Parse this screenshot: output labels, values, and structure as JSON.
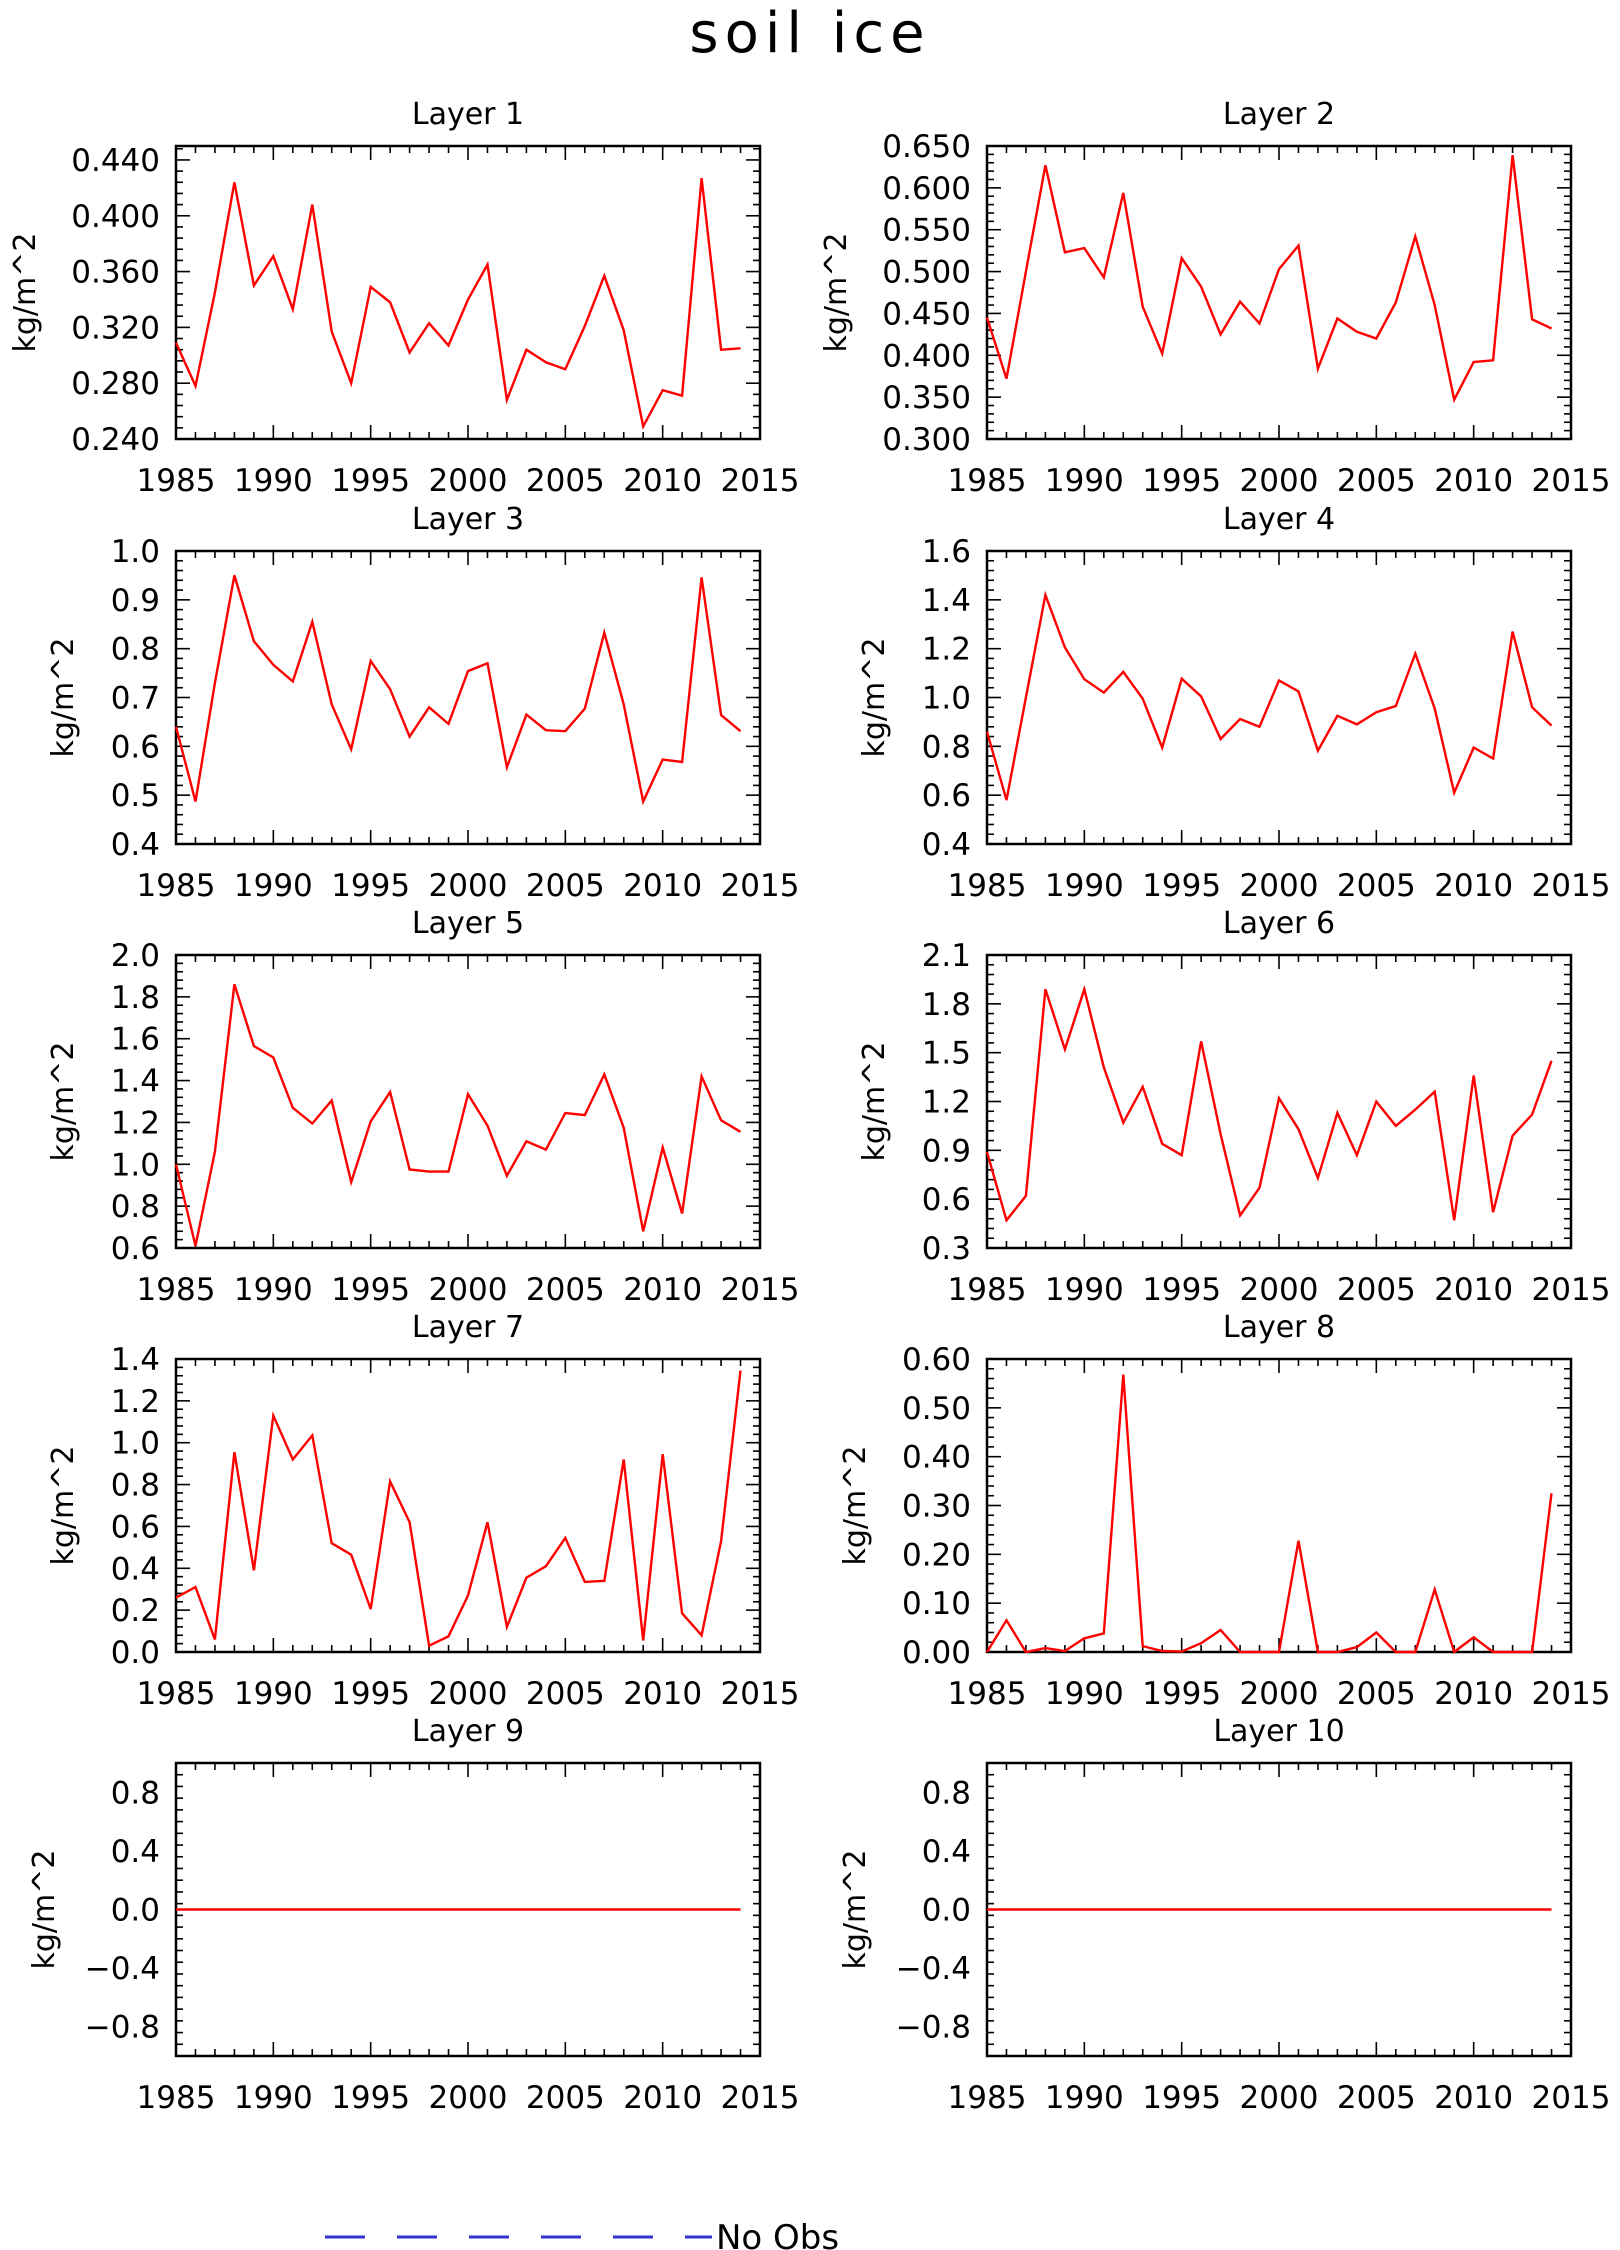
{
  "title": "soil ice",
  "legend": {
    "label": "No Obs",
    "color": "#3333cc"
  },
  "series_color": "#ff0000",
  "chart_data": [
    {
      "type": "line",
      "title": "Layer 1",
      "ylabel": "kg/m^2",
      "xlim": [
        1985,
        2015
      ],
      "ylim": [
        0.24,
        0.45
      ],
      "xticks": [
        "1985",
        "1990",
        "1995",
        "2000",
        "2005",
        "2010",
        "2015"
      ],
      "yticks": [
        "0.240",
        "0.280",
        "0.320",
        "0.360",
        "0.400",
        "0.440"
      ],
      "x_start": 1985,
      "values": [
        0.309,
        0.278,
        0.345,
        0.424,
        0.35,
        0.371,
        0.333,
        0.408,
        0.317,
        0.28,
        0.349,
        0.338,
        0.302,
        0.323,
        0.307,
        0.34,
        0.365,
        0.268,
        0.304,
        0.295,
        0.29,
        0.321,
        0.357,
        0.318,
        0.249,
        0.275,
        0.271,
        0.427,
        0.304,
        0.305
      ]
    },
    {
      "type": "line",
      "title": "Layer 2",
      "ylabel": "kg/m^2",
      "xlim": [
        1985,
        2015
      ],
      "ylim": [
        0.3,
        0.65
      ],
      "xticks": [
        "1985",
        "1990",
        "1995",
        "2000",
        "2005",
        "2010",
        "2015"
      ],
      "yticks": [
        "0.300",
        "0.350",
        "0.400",
        "0.450",
        "0.500",
        "0.550",
        "0.600",
        "0.650"
      ],
      "x_start": 1985,
      "values": [
        0.445,
        0.372,
        0.5,
        0.627,
        0.523,
        0.528,
        0.493,
        0.594,
        0.458,
        0.402,
        0.516,
        0.482,
        0.425,
        0.464,
        0.438,
        0.503,
        0.531,
        0.384,
        0.444,
        0.428,
        0.42,
        0.463,
        0.542,
        0.46,
        0.347,
        0.392,
        0.394,
        0.639,
        0.443,
        0.432
      ]
    },
    {
      "type": "line",
      "title": "Layer 3",
      "ylabel": "kg/m^2",
      "xlim": [
        1985,
        2015
      ],
      "ylim": [
        0.4,
        1.0
      ],
      "xticks": [
        "1985",
        "1990",
        "1995",
        "2000",
        "2005",
        "2010",
        "2015"
      ],
      "yticks": [
        "0.4",
        "0.5",
        "0.6",
        "0.7",
        "0.8",
        "0.9",
        "1.0"
      ],
      "x_start": 1985,
      "values": [
        0.64,
        0.487,
        0.73,
        0.95,
        0.815,
        0.767,
        0.733,
        0.855,
        0.686,
        0.594,
        0.775,
        0.717,
        0.62,
        0.68,
        0.646,
        0.754,
        0.77,
        0.557,
        0.665,
        0.633,
        0.631,
        0.677,
        0.833,
        0.686,
        0.487,
        0.573,
        0.568,
        0.946,
        0.664,
        0.631
      ]
    },
    {
      "type": "line",
      "title": "Layer 4",
      "ylabel": "kg/m^2",
      "xlim": [
        1985,
        2015
      ],
      "ylim": [
        0.4,
        1.6
      ],
      "xticks": [
        "1985",
        "1990",
        "1995",
        "2000",
        "2005",
        "2010",
        "2015"
      ],
      "yticks": [
        "0.4",
        "0.6",
        "0.8",
        "1.0",
        "1.2",
        "1.4",
        "1.6"
      ],
      "x_start": 1985,
      "values": [
        0.86,
        0.58,
        1.0,
        1.42,
        1.205,
        1.075,
        1.02,
        1.105,
        0.995,
        0.795,
        1.077,
        1.005,
        0.83,
        0.912,
        0.88,
        1.07,
        1.025,
        0.782,
        0.925,
        0.89,
        0.94,
        0.965,
        1.18,
        0.955,
        0.61,
        0.795,
        0.75,
        1.27,
        0.96,
        0.885
      ]
    },
    {
      "type": "line",
      "title": "Layer 5",
      "ylabel": "kg/m^2",
      "xlim": [
        1985,
        2015
      ],
      "ylim": [
        0.6,
        2.0
      ],
      "xticks": [
        "1985",
        "1990",
        "1995",
        "2000",
        "2005",
        "2010",
        "2015"
      ],
      "yticks": [
        "0.6",
        "0.8",
        "1.0",
        "1.2",
        "1.4",
        "1.6",
        "1.8",
        "2.0"
      ],
      "x_start": 1985,
      "values": [
        1.0,
        0.61,
        1.06,
        1.86,
        1.565,
        1.51,
        1.27,
        1.195,
        1.305,
        0.915,
        1.205,
        1.345,
        0.975,
        0.965,
        0.965,
        1.335,
        1.185,
        0.945,
        1.11,
        1.07,
        1.245,
        1.235,
        1.43,
        1.175,
        0.68,
        1.08,
        0.765,
        1.42,
        1.21,
        1.155
      ]
    },
    {
      "type": "line",
      "title": "Layer 6",
      "ylabel": "kg/m^2",
      "xlim": [
        1985,
        2015
      ],
      "ylim": [
        0.3,
        2.1
      ],
      "xticks": [
        "1985",
        "1990",
        "1995",
        "2000",
        "2005",
        "2010",
        "2015"
      ],
      "yticks": [
        "0.3",
        "0.6",
        "0.9",
        "1.2",
        "1.5",
        "1.8",
        "2.1"
      ],
      "x_start": 1985,
      "values": [
        0.89,
        0.47,
        0.62,
        1.89,
        1.52,
        1.89,
        1.41,
        1.07,
        1.29,
        0.94,
        0.87,
        1.57,
        1.0,
        0.5,
        0.67,
        1.22,
        1.03,
        0.73,
        1.13,
        0.87,
        1.2,
        1.05,
        1.15,
        1.26,
        0.47,
        1.36,
        0.52,
        0.99,
        1.12,
        1.45
      ]
    },
    {
      "type": "line",
      "title": "Layer 7",
      "ylabel": "kg/m^2",
      "xlim": [
        1985,
        2015
      ],
      "ylim": [
        0.0,
        1.4
      ],
      "xticks": [
        "1985",
        "1990",
        "1995",
        "2000",
        "2005",
        "2010",
        "2015"
      ],
      "yticks": [
        "0.0",
        "0.2",
        "0.4",
        "0.6",
        "0.8",
        "1.0",
        "1.2",
        "1.4"
      ],
      "x_start": 1985,
      "values": [
        0.26,
        0.31,
        0.06,
        0.955,
        0.39,
        1.13,
        0.92,
        1.035,
        0.52,
        0.465,
        0.205,
        0.815,
        0.62,
        0.03,
        0.075,
        0.27,
        0.62,
        0.12,
        0.355,
        0.41,
        0.545,
        0.335,
        0.34,
        0.92,
        0.055,
        0.945,
        0.185,
        0.08,
        0.53,
        1.345
      ]
    },
    {
      "type": "line",
      "title": "Layer 8",
      "ylabel": "kg/m^2",
      "xlim": [
        1985,
        2015
      ],
      "ylim": [
        0.0,
        0.6
      ],
      "xticks": [
        "1985",
        "1990",
        "1995",
        "2000",
        "2005",
        "2010",
        "2015"
      ],
      "yticks": [
        "0.00",
        "0.10",
        "0.20",
        "0.30",
        "0.40",
        "0.50",
        "0.60"
      ],
      "x_start": 1985,
      "values": [
        0.0,
        0.065,
        0.0,
        0.008,
        0.002,
        0.028,
        0.038,
        0.568,
        0.012,
        0.002,
        0.001,
        0.018,
        0.045,
        0.0,
        0.0,
        0.0,
        0.228,
        0.0,
        0.0,
        0.01,
        0.04,
        0.0,
        0.0,
        0.128,
        0.0,
        0.03,
        0.0,
        0.0,
        0.0,
        0.325
      ]
    },
    {
      "type": "line",
      "title": "Layer 9",
      "ylabel": "kg/m^2",
      "xlim": [
        1985,
        2015
      ],
      "ylim": [
        -1.0,
        1.0
      ],
      "xticks": [
        "1985",
        "1990",
        "1995",
        "2000",
        "2005",
        "2010",
        "2015"
      ],
      "yticks": [
        "−0.8",
        "−0.4",
        "0.0",
        "0.4",
        "0.8"
      ],
      "ytick_values": [
        -0.8,
        -0.4,
        0.0,
        0.4,
        0.8
      ],
      "x_start": 1985,
      "values": [
        0,
        0,
        0,
        0,
        0,
        0,
        0,
        0,
        0,
        0,
        0,
        0,
        0,
        0,
        0,
        0,
        0,
        0,
        0,
        0,
        0,
        0,
        0,
        0,
        0,
        0,
        0,
        0,
        0,
        0
      ]
    },
    {
      "type": "line",
      "title": "Layer 10",
      "ylabel": "kg/m^2",
      "xlim": [
        1985,
        2015
      ],
      "ylim": [
        -1.0,
        1.0
      ],
      "xticks": [
        "1985",
        "1990",
        "1995",
        "2000",
        "2005",
        "2010",
        "2015"
      ],
      "yticks": [
        "−0.8",
        "−0.4",
        "0.0",
        "0.4",
        "0.8"
      ],
      "ytick_values": [
        -0.8,
        -0.4,
        0.0,
        0.4,
        0.8
      ],
      "x_start": 1985,
      "values": [
        0,
        0,
        0,
        0,
        0,
        0,
        0,
        0,
        0,
        0,
        0,
        0,
        0,
        0,
        0,
        0,
        0,
        0,
        0,
        0,
        0,
        0,
        0,
        0,
        0,
        0,
        0,
        0,
        0,
        0
      ]
    }
  ]
}
